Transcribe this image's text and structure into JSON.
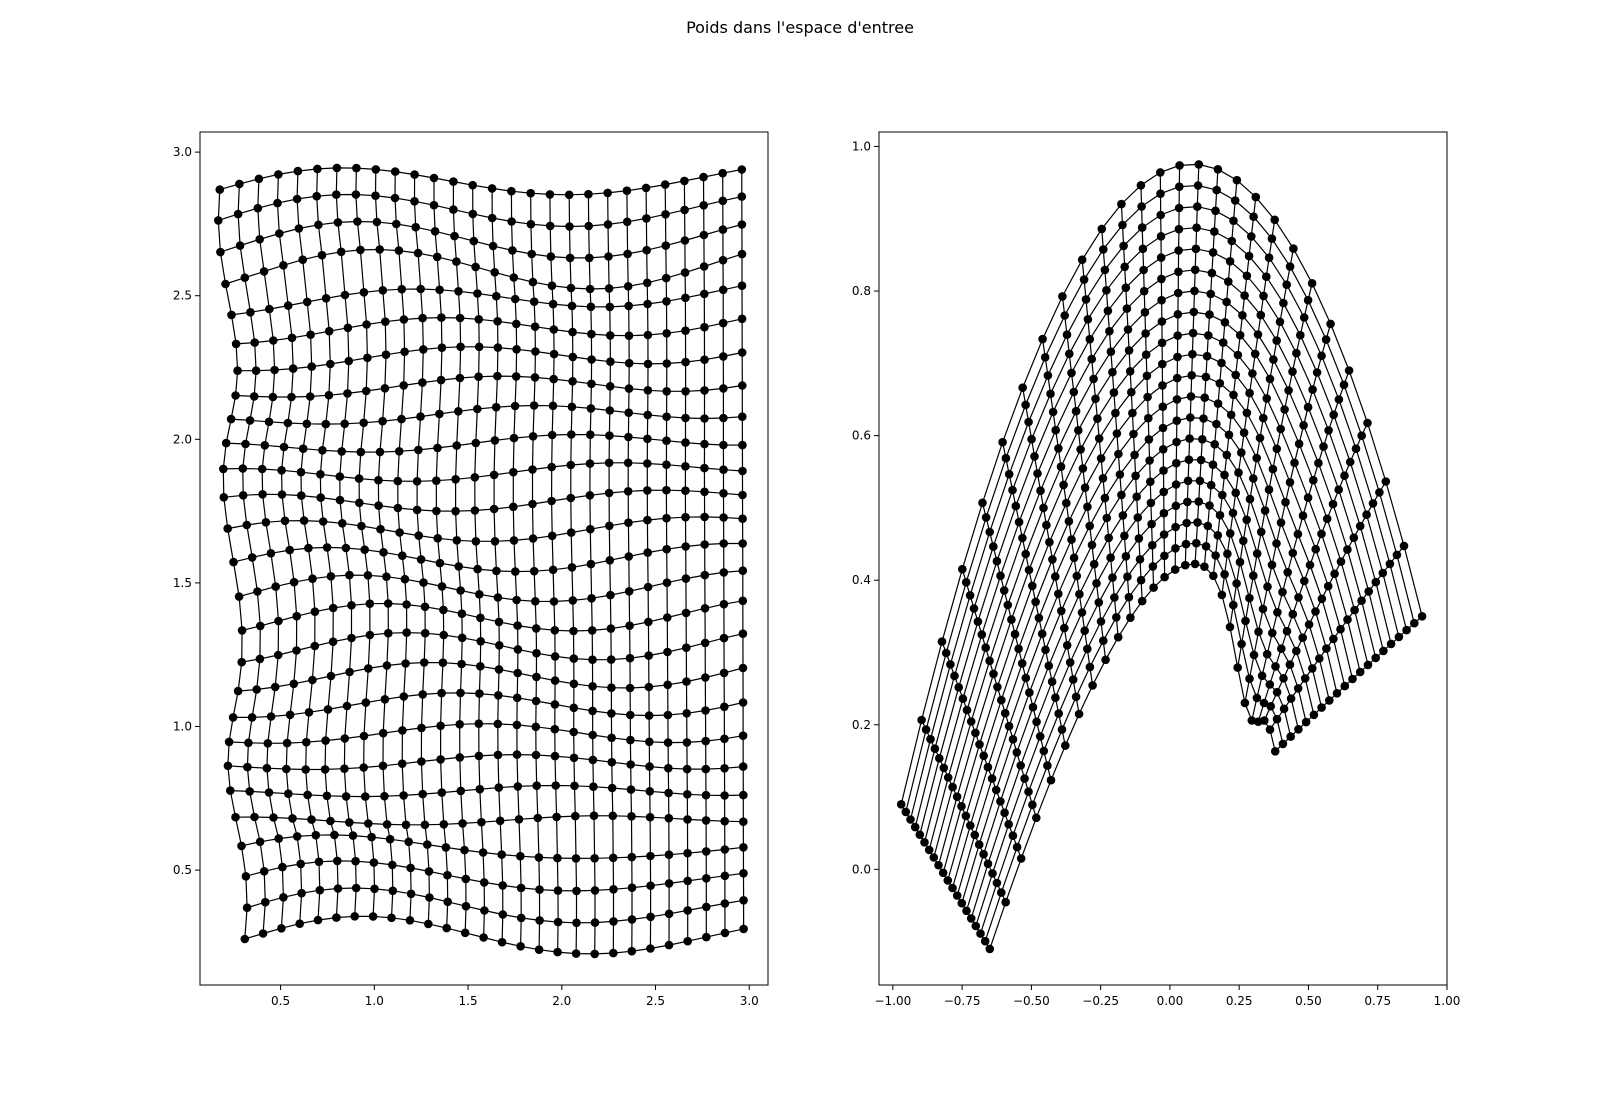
{
  "figure": {
    "title": "Poids dans l'espace d'entree"
  },
  "chart_data": [
    {
      "type": "line",
      "title": "",
      "xlabel": "",
      "ylabel": "",
      "xlim": [
        0.07,
        3.1
      ],
      "ylim": [
        0.1,
        3.07
      ],
      "xticks": [
        0.5,
        1.0,
        1.5,
        2.0,
        2.5,
        3.0
      ],
      "yticks": [
        0.5,
        1.0,
        1.5,
        2.0,
        2.5,
        3.0
      ],
      "xtick_labels": [
        "0.5",
        "1.0",
        "1.5",
        "2.0",
        "2.5",
        "3.0"
      ],
      "ytick_labels": [
        "0.5",
        "1.0",
        "1.5",
        "2.0",
        "2.5",
        "3.0"
      ],
      "grid": false,
      "mesh": {
        "description": "self-organizing map weight grid; consecutive nodes joined by lines along rows and columns",
        "rows": 27,
        "cols": 28,
        "x_range": [
          0.2,
          2.97
        ],
        "y_range": [
          0.24,
          2.94
        ],
        "boundary": {
          "bottom_left": [
            0.28,
            0.26
          ],
          "bottom_right": [
            2.97,
            0.28
          ],
          "top_left": [
            0.21,
            2.86
          ],
          "top_right": [
            2.96,
            2.93
          ]
        }
      },
      "marker": "filled-circle",
      "color": "#000000"
    },
    {
      "type": "line",
      "title": "",
      "xlabel": "",
      "ylabel": "",
      "xlim": [
        -1.05,
        1.0
      ],
      "ylim": [
        -0.16,
        1.02
      ],
      "xticks": [
        -1.0,
        -0.75,
        -0.5,
        -0.25,
        0.0,
        0.25,
        0.5,
        0.75,
        1.0
      ],
      "yticks": [
        0.0,
        0.2,
        0.4,
        0.6,
        0.8,
        1.0
      ],
      "xtick_labels": [
        "−1.00",
        "−0.75",
        "−0.50",
        "−0.25",
        "0.00",
        "0.25",
        "0.50",
        "0.75",
        "1.00"
      ],
      "ytick_labels": [
        "0.0",
        "0.2",
        "0.4",
        "0.6",
        "0.8",
        "1.0"
      ],
      "grid": false,
      "mesh": {
        "description": "self-organizing map weight grid folded into an arch shape; consecutive nodes joined by lines",
        "rows": 20,
        "cols": 28,
        "outer_arch": {
          "left_foot": [
            -0.97,
            0.09
          ],
          "apex": [
            0.0,
            0.97
          ],
          "right_foot": [
            0.91,
            0.35
          ]
        },
        "inner_arch": {
          "left_foot": [
            -0.65,
            -0.11
          ],
          "apex": [
            0.0,
            0.41
          ],
          "right_foot": [
            0.38,
            0.17
          ]
        }
      },
      "marker": "filled-circle",
      "color": "#000000"
    }
  ]
}
